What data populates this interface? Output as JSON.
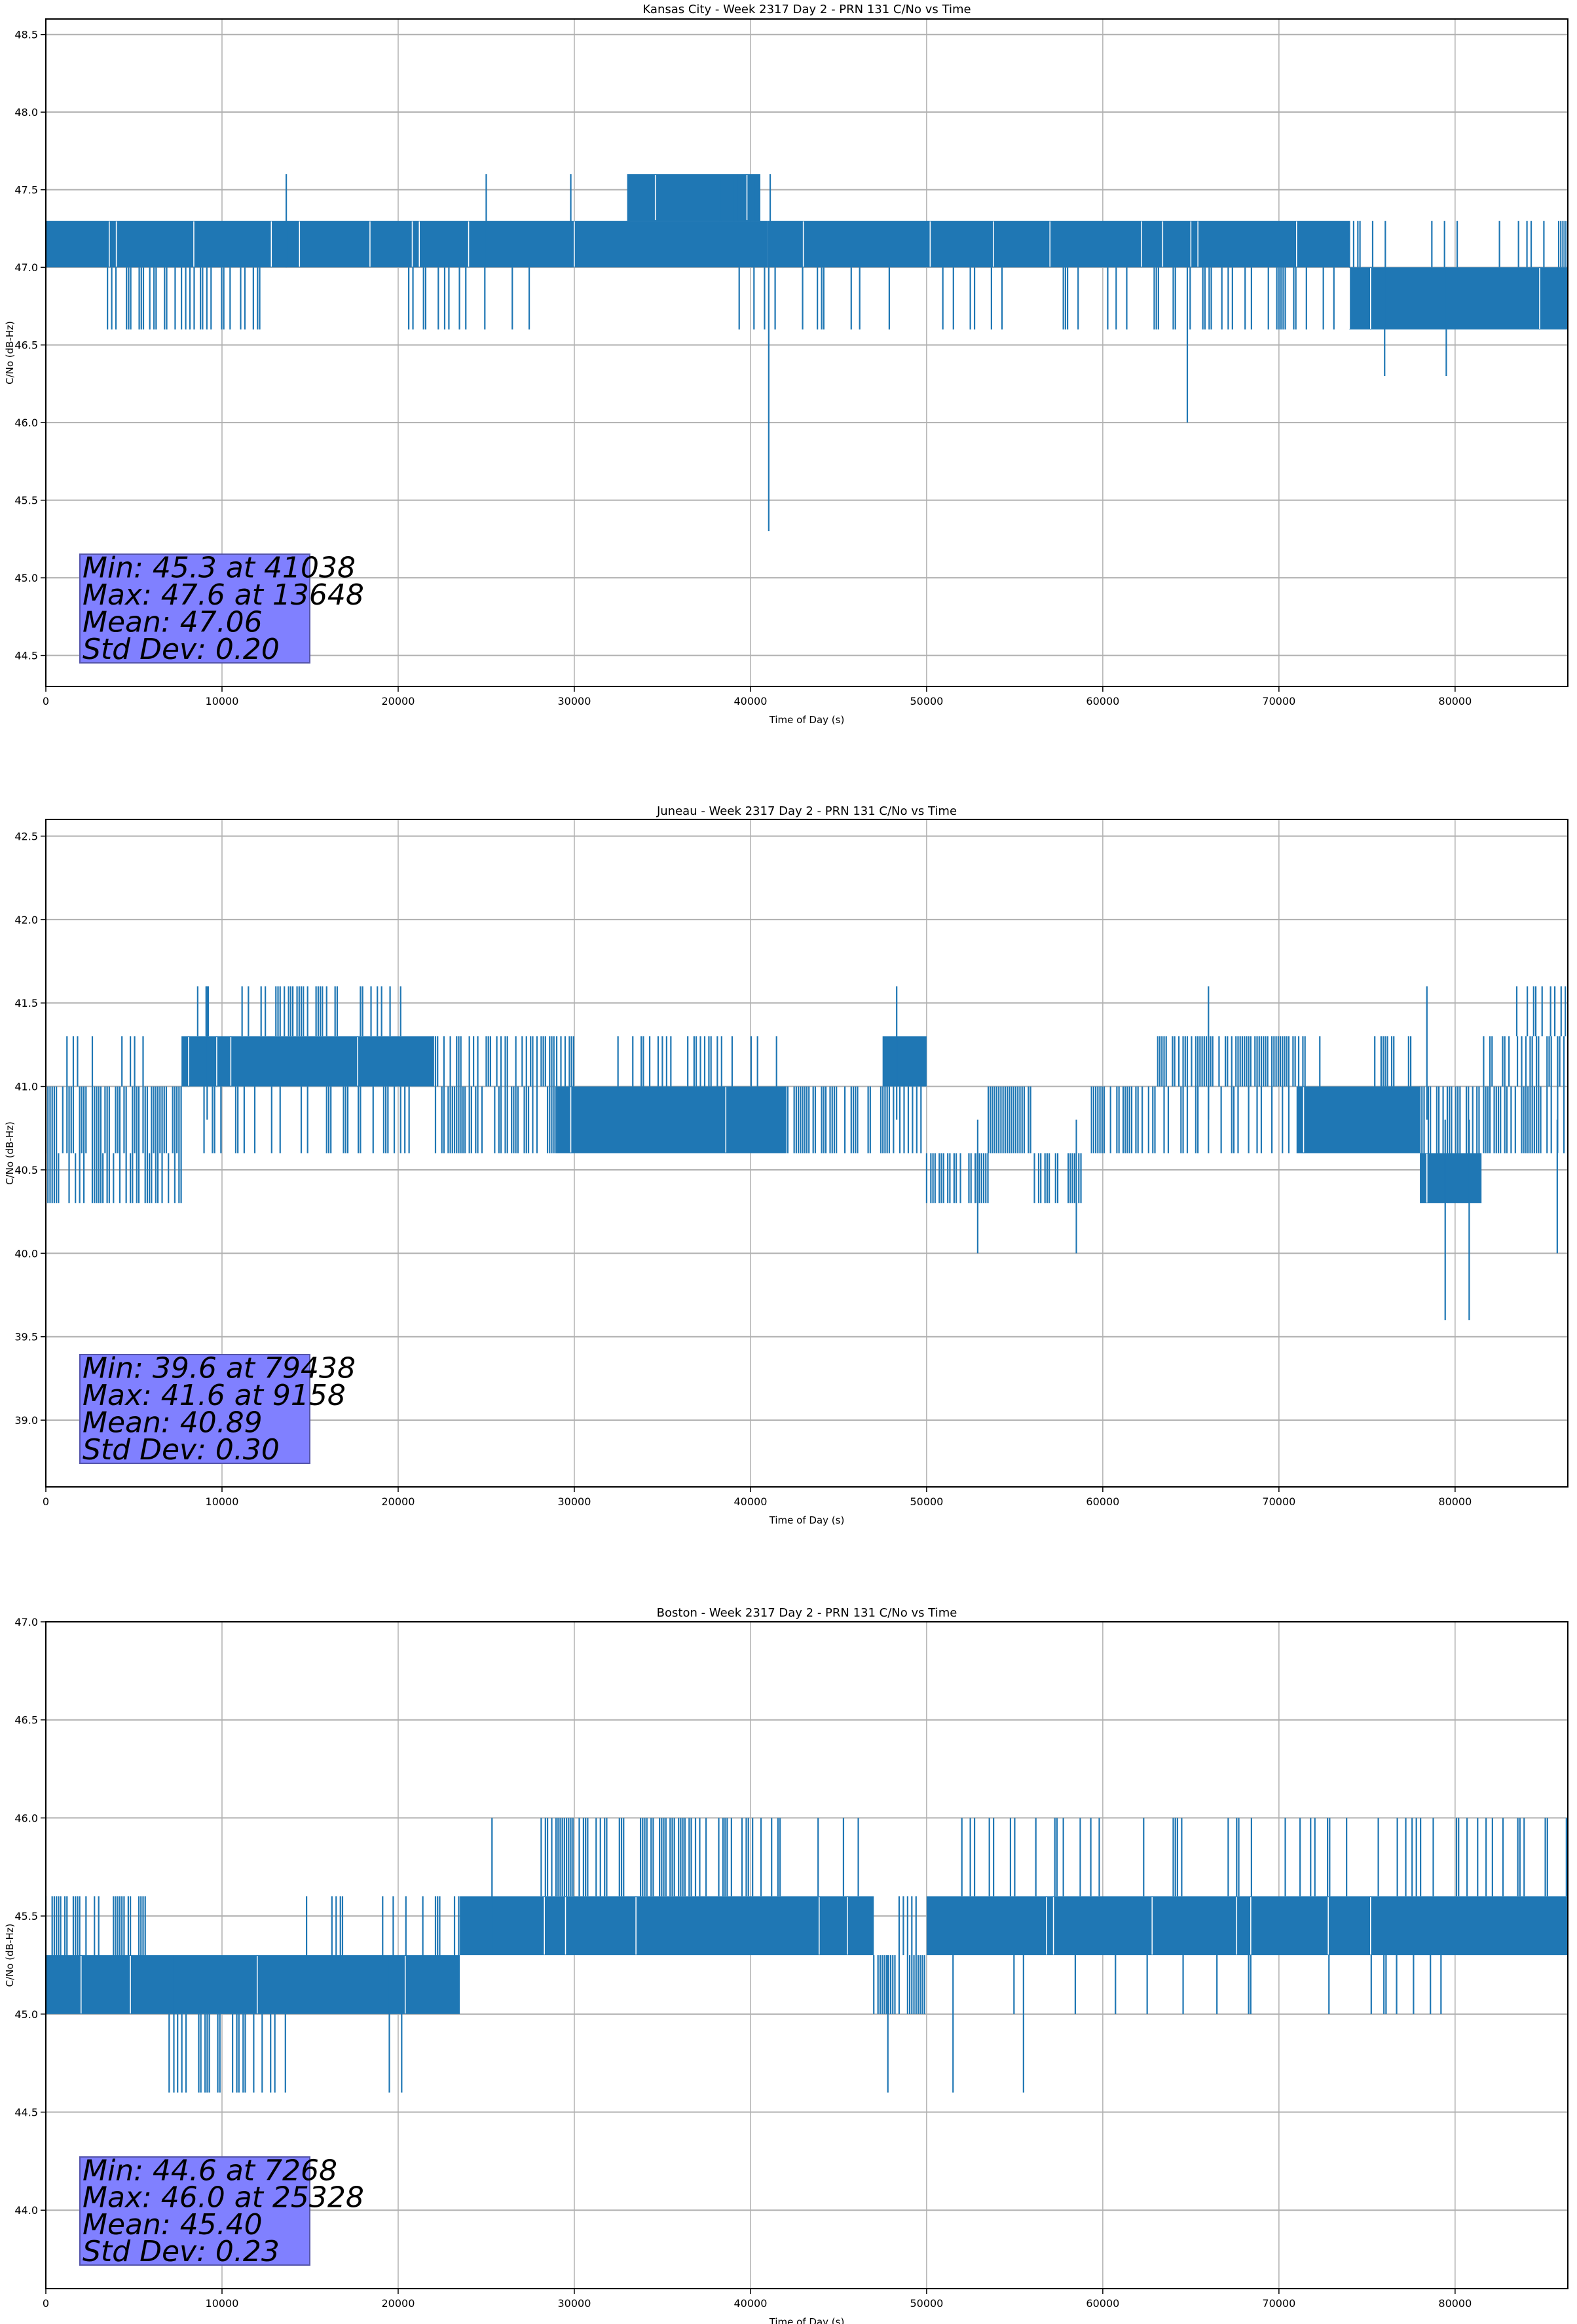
{
  "chart_data": [
    {
      "type": "line",
      "title": "Kansas City - Week 2317 Day 2 - PRN 131 C/No vs Time",
      "xlabel": "Time of Day (s)",
      "ylabel": "C/No (dB-Hz)",
      "xlim": [
        0,
        86400
      ],
      "ylim": [
        44.3,
        48.6
      ],
      "xticks": [
        0,
        10000,
        20000,
        30000,
        40000,
        50000,
        60000,
        70000,
        80000
      ],
      "yticks": [
        "44.5",
        "45.0",
        "45.5",
        "46.0",
        "46.5",
        "47.0",
        "47.5",
        "48.0",
        "48.5"
      ],
      "grid": true,
      "color": "#1f77b4",
      "stats": [
        "Min: 45.3 at 41038",
        "Max: 47.6 at 13648",
        "Mean: 47.06",
        "Std Dev: 0.20"
      ],
      "stats_box_color": "#8080ff",
      "bands": [
        [
          0,
          41000,
          47.0,
          47.3,
          0.9
        ],
        [
          33000,
          40500,
          47.3,
          47.6,
          0.85
        ],
        [
          38000,
          41500,
          47.3,
          47.6,
          0.3
        ],
        [
          41000,
          74000,
          47.0,
          47.3,
          0.85
        ],
        [
          74000,
          86400,
          46.6,
          47.0,
          0.9
        ],
        [
          74000,
          86400,
          47.0,
          47.3,
          0.15
        ],
        [
          3500,
          12500,
          46.6,
          47.0,
          0.45
        ],
        [
          20000,
          30000,
          46.6,
          47.0,
          0.05
        ],
        [
          39000,
          49000,
          46.6,
          47.0,
          0.12
        ],
        [
          49000,
          74000,
          46.6,
          47.0,
          0.18
        ]
      ],
      "spikes": [
        [
          13648,
          47.6
        ],
        [
          25000,
          47.6
        ],
        [
          29800,
          47.6
        ],
        [
          41038,
          45.3
        ],
        [
          64800,
          46.0
        ],
        [
          76000,
          46.3
        ],
        [
          79500,
          46.3
        ]
      ],
      "spike_base": 47.0
    },
    {
      "type": "line",
      "title": "Juneau - Week 2317 Day 2 - PRN 131 C/No vs Time",
      "xlabel": "Time of Day (s)",
      "ylabel": "C/No (dB-Hz)",
      "xlim": [
        0,
        86400
      ],
      "ylim": [
        38.6,
        42.6
      ],
      "xticks": [
        0,
        10000,
        20000,
        30000,
        40000,
        50000,
        60000,
        70000,
        80000
      ],
      "yticks": [
        "39.0",
        "39.5",
        "40.0",
        "40.5",
        "41.0",
        "41.5",
        "42.0",
        "42.5"
      ],
      "grid": true,
      "color": "#1f77b4",
      "stats": [
        "Min: 39.6 at 79438",
        "Max: 41.6 at 9158",
        "Mean: 40.89",
        "Std Dev: 0.30"
      ],
      "stats_box_color": "#8080ff",
      "bands": [
        [
          0,
          7700,
          40.6,
          41.0,
          0.75
        ],
        [
          0,
          7700,
          40.3,
          40.6,
          0.6
        ],
        [
          0,
          7700,
          41.0,
          41.3,
          0.1
        ],
        [
          7700,
          22000,
          41.0,
          41.3,
          0.9
        ],
        [
          8500,
          21000,
          41.3,
          41.6,
          0.35
        ],
        [
          8500,
          21000,
          40.6,
          41.0,
          0.25
        ],
        [
          22000,
          29000,
          41.0,
          41.3,
          0.6
        ],
        [
          22000,
          29000,
          40.6,
          41.0,
          0.6
        ],
        [
          29000,
          42000,
          40.6,
          41.0,
          0.9
        ],
        [
          29000,
          42000,
          41.0,
          41.3,
          0.3
        ],
        [
          42000,
          48000,
          40.6,
          41.0,
          0.7
        ],
        [
          47500,
          50000,
          41.0,
          41.3,
          0.85
        ],
        [
          48000,
          50500,
          40.6,
          41.0,
          0.5
        ],
        [
          50000,
          53500,
          40.3,
          40.6,
          0.75
        ],
        [
          53500,
          56000,
          40.6,
          41.0,
          0.8
        ],
        [
          56000,
          59000,
          40.3,
          40.6,
          0.7
        ],
        [
          59000,
          63000,
          40.6,
          41.0,
          0.75
        ],
        [
          63000,
          71000,
          41.0,
          41.3,
          0.8
        ],
        [
          63000,
          71000,
          40.6,
          41.0,
          0.25
        ],
        [
          71000,
          78000,
          40.6,
          41.0,
          0.85
        ],
        [
          71000,
          78000,
          41.0,
          41.3,
          0.3
        ],
        [
          78000,
          81500,
          40.3,
          40.6,
          0.85
        ],
        [
          78000,
          81500,
          40.6,
          41.0,
          0.4
        ],
        [
          81500,
          86400,
          40.6,
          41.0,
          0.7
        ],
        [
          81500,
          86400,
          41.0,
          41.3,
          0.5
        ],
        [
          83500,
          86400,
          41.3,
          41.6,
          0.2
        ]
      ],
      "spikes": [
        [
          52900,
          40.0
        ],
        [
          58500,
          40.0
        ],
        [
          79438,
          39.6
        ],
        [
          80800,
          39.6
        ],
        [
          85800,
          40.0
        ],
        [
          48300,
          41.6
        ],
        [
          66000,
          41.6
        ],
        [
          9158,
          41.6
        ],
        [
          78400,
          41.6
        ]
      ],
      "spike_base": 40.8
    },
    {
      "type": "line",
      "title": "Boston - Week 2317 Day 2 - PRN 131 C/No vs Time",
      "xlabel": "Time of Day (s)",
      "ylabel": "C/No (dB-Hz)",
      "xlim": [
        0,
        86400
      ],
      "ylim": [
        43.6,
        47.0
      ],
      "xticks": [
        0,
        10000,
        20000,
        30000,
        40000,
        50000,
        60000,
        70000,
        80000
      ],
      "yticks": [
        "44.0",
        "44.5",
        "45.0",
        "45.5",
        "46.0",
        "46.5",
        "47.0"
      ],
      "grid": true,
      "color": "#1f77b4",
      "stats": [
        "Min: 44.6 at 7268",
        "Max: 46.0 at 25328",
        "Mean: 45.40",
        "Std Dev: 0.23"
      ],
      "stats_box_color": "#8080ff",
      "bands": [
        [
          0,
          6000,
          45.3,
          45.6,
          0.5
        ],
        [
          0,
          23500,
          45.0,
          45.3,
          0.85
        ],
        [
          16000,
          23500,
          45.3,
          45.6,
          0.15
        ],
        [
          23500,
          47000,
          45.3,
          45.6,
          0.85
        ],
        [
          28000,
          40000,
          45.6,
          46.0,
          0.45
        ],
        [
          40000,
          47000,
          45.6,
          46.0,
          0.1
        ],
        [
          47000,
          50000,
          45.0,
          45.3,
          0.75
        ],
        [
          47000,
          50000,
          45.3,
          45.6,
          0.3
        ],
        [
          50000,
          86400,
          45.3,
          45.6,
          0.9
        ],
        [
          52000,
          86400,
          45.6,
          46.0,
          0.15
        ],
        [
          54000,
          82000,
          45.0,
          45.3,
          0.06
        ],
        [
          7000,
          13800,
          44.6,
          45.0,
          0.35
        ]
      ],
      "spikes": [
        [
          7268,
          44.6
        ],
        [
          19500,
          44.6
        ],
        [
          20200,
          44.6
        ],
        [
          47800,
          44.6
        ],
        [
          51500,
          44.6
        ],
        [
          55500,
          44.6
        ],
        [
          25328,
          46.0
        ],
        [
          14800,
          45.6
        ]
      ],
      "spike_base": 45.3
    }
  ]
}
